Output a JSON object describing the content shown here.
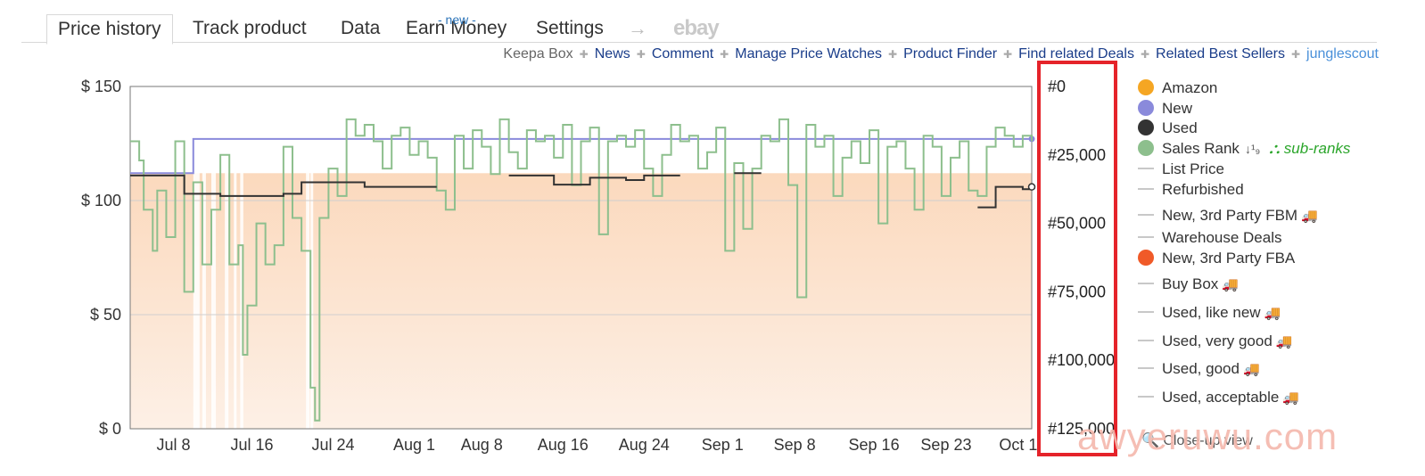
{
  "tabs": [
    {
      "label": "Price history",
      "active": true
    },
    {
      "label": "Track product"
    },
    {
      "label": "Data"
    },
    {
      "label": "Earn Money",
      "badge": "- new -"
    },
    {
      "label": "Settings"
    },
    {
      "label": "→"
    },
    {
      "label": "ebay"
    }
  ],
  "links": [
    "Keepa Box",
    "News",
    "Comment",
    "Manage Price Watches",
    "Product Finder",
    "Find related Deals",
    "Related Best Sellers",
    "junglescout"
  ],
  "legend": [
    {
      "label": "Amazon",
      "kind": "dot",
      "color": "#f5a623"
    },
    {
      "label": "New",
      "kind": "dot",
      "color": "#8a8adb"
    },
    {
      "label": "Used",
      "kind": "dot",
      "color": "#333333"
    },
    {
      "label": "Sales Rank",
      "kind": "dot",
      "color": "#8dbf8d",
      "extra": "sub-ranks"
    },
    {
      "label": "List Price",
      "kind": "dash"
    },
    {
      "label": "Refurbished",
      "kind": "dash"
    },
    {
      "label": "New, 3rd Party FBM",
      "kind": "dash",
      "truck": true
    },
    {
      "label": "Warehouse Deals",
      "kind": "dash"
    },
    {
      "label": "New, 3rd Party FBA",
      "kind": "dot",
      "color": "#f05a28"
    },
    {
      "label": "Buy Box",
      "kind": "dash",
      "truck": true
    },
    {
      "label": "Used, like new",
      "kind": "dash",
      "truck": true
    },
    {
      "label": "Used, very good",
      "kind": "dash",
      "truck": true
    },
    {
      "label": "Used, good",
      "kind": "dash",
      "truck": true
    },
    {
      "label": "Used, acceptable",
      "kind": "dash",
      "truck": true
    }
  ],
  "footer": {
    "closeup": "Close-up view",
    "watermark": "awyeruwu.com"
  },
  "chart_data": {
    "type": "line",
    "x_ticks": [
      "Jul 8",
      "Jul 16",
      "Jul 24",
      "Aug 1",
      "Aug 8",
      "Aug 16",
      "Aug 24",
      "Sep 1",
      "Sep 8",
      "Sep 16",
      "Sep 23",
      "Oct 1"
    ],
    "y_left_ticks": [
      "$ 150",
      "$ 100",
      "$ 50",
      "$ 0"
    ],
    "y_left_range": [
      0,
      150
    ],
    "y_right_ticks": [
      "#0",
      "#25,000",
      "#50,000",
      "#75,000",
      "#100,000",
      "#125,000"
    ],
    "y_right_range": [
      0,
      125000
    ],
    "series": [
      {
        "name": "New",
        "color": "#8a8adb",
        "points": [
          [
            0,
            112
          ],
          [
            7,
            112
          ],
          [
            7,
            127
          ],
          [
            100,
            127
          ]
        ]
      },
      {
        "name": "Used",
        "color": "#333333",
        "segments": [
          [
            [
              0,
              111
            ],
            [
              6,
              111
            ],
            [
              6,
              103
            ],
            [
              10,
              103
            ],
            [
              10,
              102
            ],
            [
              17,
              102
            ],
            [
              17,
              103
            ],
            [
              19,
              103
            ],
            [
              19,
              108
            ],
            [
              26,
              108
            ],
            [
              26,
              106
            ],
            [
              34,
              106
            ]
          ],
          [
            [
              42,
              111
            ],
            [
              47,
              111
            ],
            [
              47,
              107
            ],
            [
              51,
              107
            ],
            [
              51,
              110
            ],
            [
              55,
              110
            ],
            [
              55,
              109
            ],
            [
              57,
              109
            ],
            [
              57,
              111
            ],
            [
              61,
              111
            ]
          ],
          [
            [
              67,
              112
            ],
            [
              70,
              112
            ]
          ],
          [
            [
              94,
              97
            ],
            [
              96,
              97
            ],
            [
              96,
              106
            ],
            [
              99,
              106
            ],
            [
              99,
              105
            ],
            [
              100,
              105
            ]
          ]
        ]
      },
      {
        "name": "Sales Rank",
        "color": "#8dbf8d",
        "ranks": [
          [
            0,
            20000
          ],
          [
            1,
            27000
          ],
          [
            1.5,
            45000
          ],
          [
            2.5,
            60000
          ],
          [
            3,
            38000
          ],
          [
            4,
            55000
          ],
          [
            5,
            20000
          ],
          [
            6,
            75000
          ],
          [
            7,
            35000
          ],
          [
            8,
            65000
          ],
          [
            9,
            45000
          ],
          [
            10,
            25000
          ],
          [
            11,
            65000
          ],
          [
            12,
            58000
          ],
          [
            12.5,
            98000
          ],
          [
            13,
            80000
          ],
          [
            14,
            50000
          ],
          [
            15,
            65000
          ],
          [
            16,
            58000
          ],
          [
            17,
            22000
          ],
          [
            18,
            48000
          ],
          [
            19,
            60000
          ],
          [
            20,
            110000
          ],
          [
            20.5,
            122000
          ],
          [
            21,
            48000
          ],
          [
            22,
            30000
          ],
          [
            23,
            40000
          ],
          [
            24,
            12000
          ],
          [
            25,
            18000
          ],
          [
            26,
            14000
          ],
          [
            27,
            20000
          ],
          [
            28,
            30000
          ],
          [
            29,
            18000
          ],
          [
            30,
            15000
          ],
          [
            31,
            25000
          ],
          [
            32,
            20000
          ],
          [
            33,
            26000
          ],
          [
            34,
            38000
          ],
          [
            35,
            45000
          ],
          [
            36,
            18000
          ],
          [
            37,
            30000
          ],
          [
            38,
            16000
          ],
          [
            39,
            22000
          ],
          [
            40,
            32000
          ],
          [
            41,
            12000
          ],
          [
            42,
            24000
          ],
          [
            43,
            30000
          ],
          [
            44,
            16000
          ],
          [
            45,
            20000
          ],
          [
            46,
            18000
          ],
          [
            47,
            26000
          ],
          [
            48,
            14000
          ],
          [
            49,
            36000
          ],
          [
            50,
            20000
          ],
          [
            51,
            15000
          ],
          [
            52,
            54000
          ],
          [
            53,
            20000
          ],
          [
            54,
            18000
          ],
          [
            55,
            22000
          ],
          [
            56,
            16000
          ],
          [
            57,
            30000
          ],
          [
            58,
            40000
          ],
          [
            59,
            25000
          ],
          [
            60,
            14000
          ],
          [
            61,
            20000
          ],
          [
            62,
            18000
          ],
          [
            63,
            30000
          ],
          [
            64,
            24000
          ],
          [
            65,
            15000
          ],
          [
            66,
            60000
          ],
          [
            67,
            28000
          ],
          [
            68,
            52000
          ],
          [
            69,
            30000
          ],
          [
            70,
            18000
          ],
          [
            71,
            20000
          ],
          [
            72,
            12000
          ],
          [
            73,
            36000
          ],
          [
            74,
            77000
          ],
          [
            75,
            14000
          ],
          [
            76,
            22000
          ],
          [
            77,
            18000
          ],
          [
            78,
            40000
          ],
          [
            79,
            26000
          ],
          [
            80,
            20000
          ],
          [
            81,
            28000
          ],
          [
            82,
            16000
          ],
          [
            83,
            50000
          ],
          [
            84,
            22000
          ],
          [
            85,
            20000
          ],
          [
            86,
            30000
          ],
          [
            87,
            45000
          ],
          [
            88,
            18000
          ],
          [
            89,
            22000
          ],
          [
            90,
            40000
          ],
          [
            91,
            26000
          ],
          [
            92,
            20000
          ],
          [
            93,
            38000
          ],
          [
            94,
            40000
          ],
          [
            95,
            22000
          ],
          [
            96,
            15000
          ],
          [
            97,
            18000
          ],
          [
            98,
            22000
          ],
          [
            99,
            18000
          ],
          [
            100,
            20000
          ]
        ]
      }
    ],
    "legend_placement": "right",
    "grid": true
  }
}
